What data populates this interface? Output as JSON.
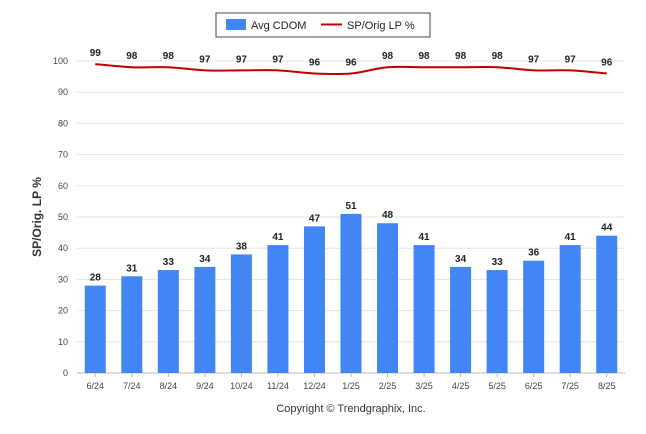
{
  "chart_data": {
    "type": "bar",
    "categories": [
      "6/24",
      "7/24",
      "8/24",
      "9/24",
      "10/24",
      "11/24",
      "12/24",
      "1/25",
      "2/25",
      "3/25",
      "4/25",
      "5/25",
      "6/25",
      "7/25",
      "8/25"
    ],
    "series": [
      {
        "name": "Avg CDOM",
        "type": "bar",
        "color": "#4285f4",
        "values": [
          28,
          31,
          33,
          34,
          38,
          41,
          47,
          51,
          48,
          41,
          34,
          33,
          36,
          41,
          44
        ]
      },
      {
        "name": "SP/Orig LP %",
        "type": "line",
        "color": "#c00000",
        "values": [
          99,
          98,
          98,
          97,
          97,
          97,
          96,
          96,
          98,
          98,
          98,
          98,
          97,
          97,
          96
        ]
      }
    ],
    "ylabel": "SP/Orig. LP %",
    "ylim": [
      0,
      100
    ],
    "yticks": [
      0,
      10,
      20,
      30,
      40,
      50,
      60,
      70,
      80,
      90,
      100
    ],
    "grid": true,
    "legend": "top-center"
  },
  "copyright": "Copyright © Trendgraphix, Inc."
}
